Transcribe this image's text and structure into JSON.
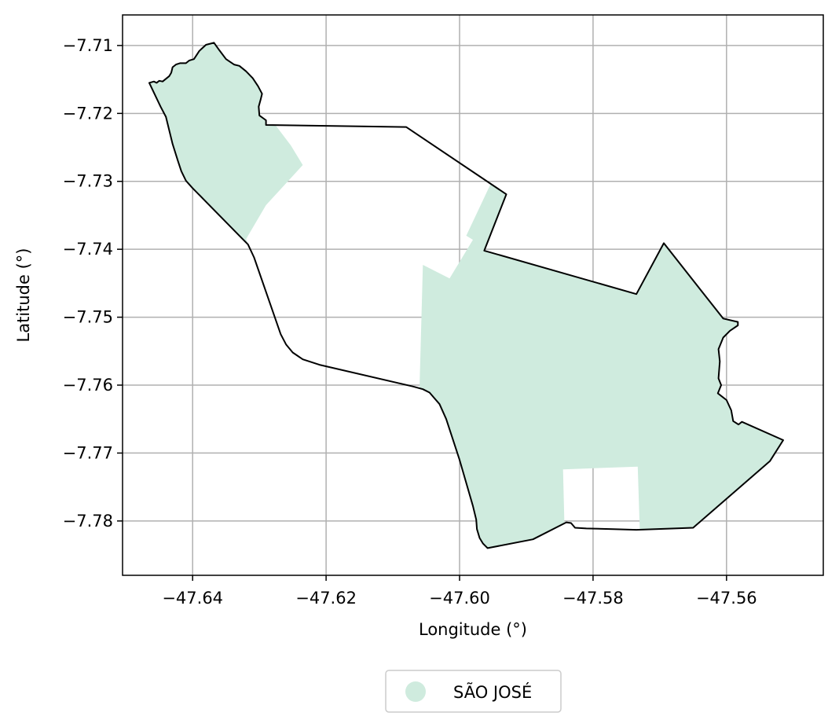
{
  "chart_data": {
    "type": "map",
    "title": "",
    "xlabel": "Longitude (°)",
    "ylabel": "Latitude (°)",
    "xlim": [
      -47.6505,
      -47.5455
    ],
    "ylim": [
      -7.788,
      -7.7055
    ],
    "xticks": [
      -47.64,
      -47.62,
      -47.6,
      -47.58,
      -47.56
    ],
    "yticks": [
      -7.71,
      -7.72,
      -7.73,
      -7.74,
      -7.75,
      -7.76,
      -7.77,
      -7.78
    ],
    "xtick_labels": [
      "−47.64",
      "−47.62",
      "−47.60",
      "−47.58",
      "−47.56"
    ],
    "ytick_labels": [
      "−7.71",
      "−7.72",
      "−7.73",
      "−7.74",
      "−7.75",
      "−7.76",
      "−7.77",
      "−7.78"
    ],
    "grid": true,
    "legend": {
      "placement": "bottom-center",
      "entries": [
        {
          "label": "SÃO JOSÉ",
          "color": "#cfebde"
        }
      ]
    },
    "colors": {
      "fill": "#cfebde",
      "boundary": "#000000",
      "grid": "#b0b0b0"
    },
    "boundary": [
      [
        -47.6465,
        -7.7155
      ],
      [
        -47.6458,
        -7.7153
      ],
      [
        -47.6454,
        -7.7155
      ],
      [
        -47.645,
        -7.7152
      ],
      [
        -47.6445,
        -7.7153
      ],
      [
        -47.6435,
        -7.7145
      ],
      [
        -47.6432,
        -7.714
      ],
      [
        -47.643,
        -7.7132
      ],
      [
        -47.6425,
        -7.7128
      ],
      [
        -47.6419,
        -7.7126
      ],
      [
        -47.641,
        -7.7126
      ],
      [
        -47.6405,
        -7.7122
      ],
      [
        -47.6398,
        -7.712
      ],
      [
        -47.639,
        -7.7108
      ],
      [
        -47.638,
        -7.7099
      ],
      [
        -47.6368,
        -7.7096
      ],
      [
        -47.636,
        -7.7107
      ],
      [
        -47.635,
        -7.712
      ],
      [
        -47.6338,
        -7.7128
      ],
      [
        -47.633,
        -7.713
      ],
      [
        -47.632,
        -7.7138
      ],
      [
        -47.631,
        -7.7148
      ],
      [
        -47.6302,
        -7.716
      ],
      [
        -47.6296,
        -7.7171
      ],
      [
        -47.6298,
        -7.7179
      ],
      [
        -47.6301,
        -7.719
      ],
      [
        -47.63,
        -7.7203
      ],
      [
        -47.629,
        -7.721
      ],
      [
        -47.629,
        -7.7217
      ],
      [
        -47.608,
        -7.722
      ],
      [
        -47.593,
        -7.7319
      ],
      [
        -47.5963,
        -7.7402
      ],
      [
        -47.5735,
        -7.7466
      ],
      [
        -47.5694,
        -7.7391
      ],
      [
        -47.5605,
        -7.7502
      ],
      [
        -47.5583,
        -7.7507
      ],
      [
        -47.5583,
        -7.7512
      ],
      [
        -47.5595,
        -7.752
      ],
      [
        -47.5605,
        -7.753
      ],
      [
        -47.5612,
        -7.7547
      ],
      [
        -47.561,
        -7.7565
      ],
      [
        -47.5612,
        -7.759
      ],
      [
        -47.5608,
        -7.76
      ],
      [
        -47.5613,
        -7.7612
      ],
      [
        -47.56,
        -7.7622
      ],
      [
        -47.5593,
        -7.7637
      ],
      [
        -47.559,
        -7.7653
      ],
      [
        -47.5582,
        -7.7658
      ],
      [
        -47.5577,
        -7.7654
      ],
      [
        -47.5515,
        -7.7681
      ],
      [
        -47.5535,
        -7.7712
      ],
      [
        -47.565,
        -7.781
      ],
      [
        -47.5735,
        -7.7813
      ],
      [
        -47.577,
        -7.7812
      ],
      [
        -47.581,
        -7.7811
      ],
      [
        -47.5827,
        -7.781
      ],
      [
        -47.5833,
        -7.7803
      ],
      [
        -47.584,
        -7.7802
      ],
      [
        -47.589,
        -7.7827
      ],
      [
        -47.5958,
        -7.784
      ],
      [
        -47.5965,
        -7.7833
      ],
      [
        -47.597,
        -7.7825
      ],
      [
        -47.5974,
        -7.7812
      ],
      [
        -47.5975,
        -7.7798
      ],
      [
        -47.598,
        -7.7778
      ],
      [
        -47.6,
        -7.771
      ],
      [
        -47.602,
        -7.765
      ],
      [
        -47.603,
        -7.7628
      ],
      [
        -47.6045,
        -7.7611
      ],
      [
        -47.6055,
        -7.7606
      ],
      [
        -47.607,
        -7.7602
      ],
      [
        -47.621,
        -7.757
      ],
      [
        -47.6235,
        -7.7562
      ],
      [
        -47.625,
        -7.7552
      ],
      [
        -47.626,
        -7.754
      ],
      [
        -47.6268,
        -7.7525
      ],
      [
        -47.6308,
        -7.7412
      ],
      [
        -47.6317,
        -7.7393
      ],
      [
        -47.633,
        -7.738
      ],
      [
        -47.64,
        -7.731
      ],
      [
        -47.641,
        -7.7299
      ],
      [
        -47.6417,
        -7.7285
      ],
      [
        -47.6422,
        -7.727
      ],
      [
        -47.643,
        -7.7245
      ],
      [
        -47.644,
        -7.7205
      ],
      [
        -47.6448,
        -7.719
      ],
      [
        -47.6465,
        -7.7155
      ]
    ],
    "holes": [
      [
        [
          -47.629,
          -7.7217
        ],
        [
          -47.608,
          -7.722
        ],
        [
          -47.5953,
          -7.7303
        ],
        [
          -47.599,
          -7.738
        ],
        [
          -47.598,
          -7.7386
        ],
        [
          -47.6015,
          -7.7443
        ],
        [
          -47.6055,
          -7.7423
        ],
        [
          -47.606,
          -7.7605
        ],
        [
          -47.621,
          -7.757
        ],
        [
          -47.6235,
          -7.7562
        ],
        [
          -47.625,
          -7.7552
        ],
        [
          -47.626,
          -7.754
        ],
        [
          -47.6268,
          -7.7525
        ],
        [
          -47.6308,
          -7.7412
        ],
        [
          -47.632,
          -7.7385
        ],
        [
          -47.629,
          -7.7335
        ],
        [
          -47.6235,
          -7.7276
        ],
        [
          -47.6253,
          -7.7247
        ],
        [
          -47.6276,
          -7.7217
        ]
      ],
      [
        [
          -47.5845,
          -7.7724
        ],
        [
          -47.5733,
          -7.772
        ],
        [
          -47.573,
          -7.7813
        ],
        [
          -47.577,
          -7.7812
        ],
        [
          -47.581,
          -7.7811
        ],
        [
          -47.5827,
          -7.781
        ],
        [
          -47.5833,
          -7.7803
        ],
        [
          -47.5843,
          -7.7802
        ]
      ]
    ]
  }
}
